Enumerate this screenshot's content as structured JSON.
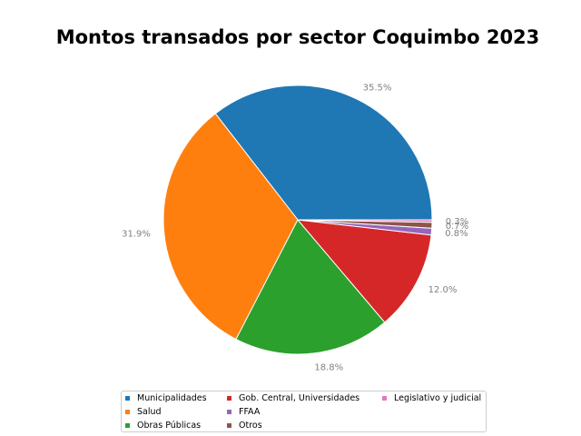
{
  "chart_data": {
    "type": "pie",
    "title": "Montos transados por sector Coquimbo 2023",
    "categories": [
      "Municipalidades",
      "Salud",
      "Obras Públicas",
      "Gob. Central, Universidades",
      "FFAA",
      "Otros",
      "Legislativo y judicial"
    ],
    "values": [
      35.5,
      31.9,
      18.8,
      12.0,
      0.8,
      0.7,
      0.3
    ],
    "labels": [
      "35.5%",
      "31.9%",
      "18.8%",
      "12.0%",
      "0.8%",
      "0.7%",
      "0.3%"
    ],
    "colors": [
      "#1f77b4",
      "#ff7f0e",
      "#2ca02c",
      "#d62728",
      "#9467bd",
      "#8c564b",
      "#e377c2"
    ],
    "legend_position": "bottom",
    "label_color": "#808080"
  }
}
